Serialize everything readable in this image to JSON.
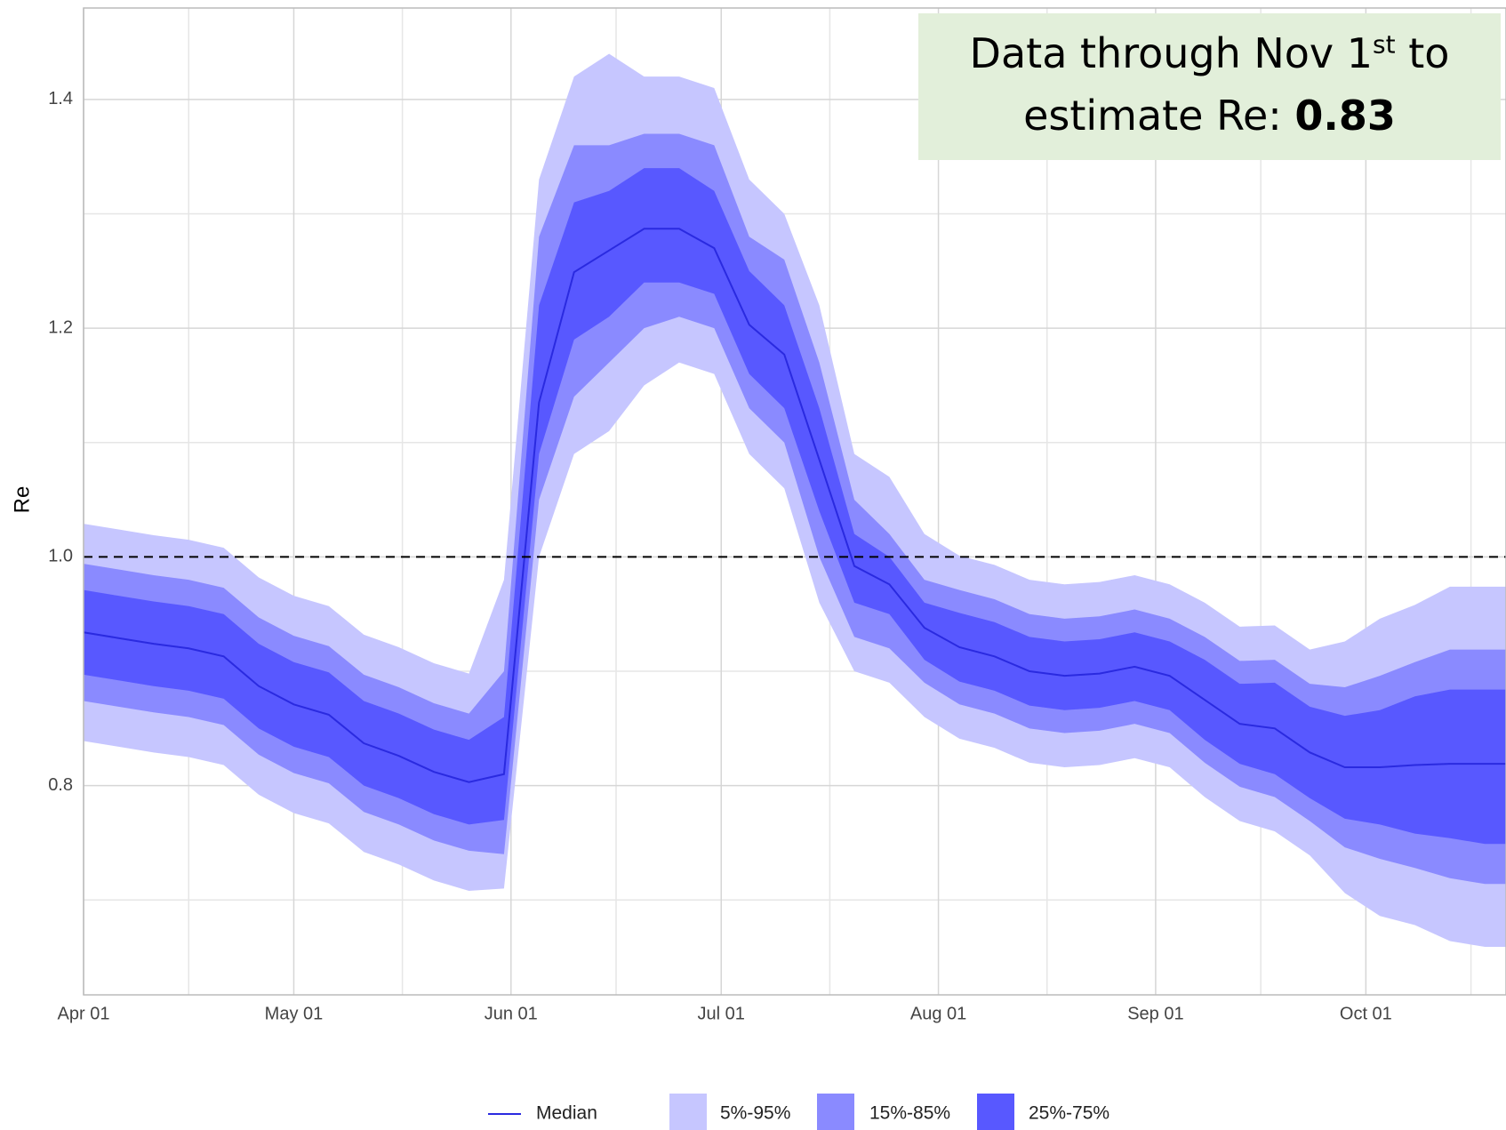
{
  "chart_data": {
    "type": "line",
    "ylabel": "Re",
    "x": [
      "04-01",
      "04-06",
      "04-11",
      "04-16",
      "04-21",
      "04-26",
      "05-01",
      "05-06",
      "05-11",
      "05-16",
      "05-21",
      "05-26",
      "05-31",
      "06-05",
      "06-10",
      "06-15",
      "06-20",
      "06-25",
      "06-30",
      "07-05",
      "07-10",
      "07-15",
      "07-20",
      "07-25",
      "07-30",
      "08-04",
      "08-09",
      "08-14",
      "08-19",
      "08-24",
      "08-29",
      "09-03",
      "09-08",
      "09-13",
      "09-18",
      "09-23",
      "09-28",
      "10-03",
      "10-08",
      "10-13",
      "10-18",
      "10-21"
    ],
    "series": [
      {
        "name": "Median",
        "color": "#2a2ae0",
        "values": [
          0.934,
          0.929,
          0.924,
          0.92,
          0.913,
          0.887,
          0.871,
          0.862,
          0.837,
          0.826,
          0.812,
          0.803,
          0.81,
          1.135,
          1.249,
          1.268,
          1.287,
          1.287,
          1.27,
          1.203,
          1.177,
          1.085,
          0.992,
          0.976,
          0.938,
          0.921,
          0.913,
          0.9,
          0.896,
          0.898,
          0.904,
          0.896,
          0.875,
          0.854,
          0.85,
          0.829,
          0.816,
          0.816,
          0.818,
          0.819,
          0.819,
          0.819
        ]
      }
    ],
    "bands": [
      {
        "name": "5%-95%",
        "color": "#c6c6ff",
        "lower": [
          0.839,
          0.834,
          0.829,
          0.825,
          0.818,
          0.792,
          0.776,
          0.767,
          0.742,
          0.731,
          0.717,
          0.708,
          0.71,
          1.0,
          1.09,
          1.11,
          1.15,
          1.17,
          1.16,
          1.09,
          1.06,
          0.96,
          0.9,
          0.89,
          0.86,
          0.841,
          0.833,
          0.82,
          0.816,
          0.818,
          0.824,
          0.816,
          0.79,
          0.769,
          0.76,
          0.739,
          0.706,
          0.686,
          0.678,
          0.664,
          0.659,
          0.659
        ],
        "upper": [
          1.029,
          1.024,
          1.019,
          1.015,
          1.008,
          0.982,
          0.966,
          0.957,
          0.932,
          0.921,
          0.907,
          0.898,
          0.98,
          1.33,
          1.42,
          1.44,
          1.42,
          1.42,
          1.41,
          1.33,
          1.3,
          1.22,
          1.09,
          1.07,
          1.02,
          1.001,
          0.993,
          0.98,
          0.976,
          0.978,
          0.984,
          0.976,
          0.96,
          0.939,
          0.94,
          0.919,
          0.926,
          0.946,
          0.958,
          0.974,
          0.974,
          0.974
        ]
      },
      {
        "name": "15%-85%",
        "color": "#8a8aff",
        "lower": [
          0.874,
          0.869,
          0.864,
          0.86,
          0.853,
          0.827,
          0.811,
          0.802,
          0.777,
          0.766,
          0.752,
          0.743,
          0.74,
          1.05,
          1.14,
          1.17,
          1.2,
          1.21,
          1.2,
          1.13,
          1.1,
          1.0,
          0.93,
          0.92,
          0.89,
          0.871,
          0.863,
          0.85,
          0.846,
          0.848,
          0.854,
          0.846,
          0.82,
          0.799,
          0.79,
          0.769,
          0.746,
          0.736,
          0.728,
          0.719,
          0.714,
          0.714
        ],
        "upper": [
          0.994,
          0.989,
          0.984,
          0.98,
          0.973,
          0.947,
          0.931,
          0.922,
          0.897,
          0.886,
          0.872,
          0.863,
          0.9,
          1.28,
          1.36,
          1.36,
          1.37,
          1.37,
          1.36,
          1.28,
          1.26,
          1.17,
          1.05,
          1.02,
          0.98,
          0.971,
          0.963,
          0.95,
          0.946,
          0.948,
          0.954,
          0.946,
          0.93,
          0.909,
          0.91,
          0.889,
          0.886,
          0.896,
          0.908,
          0.919,
          0.919,
          0.919
        ]
      },
      {
        "name": "25%-75%",
        "color": "#5858ff",
        "lower": [
          0.897,
          0.892,
          0.887,
          0.883,
          0.876,
          0.85,
          0.834,
          0.825,
          0.8,
          0.789,
          0.775,
          0.766,
          0.77,
          1.09,
          1.19,
          1.21,
          1.24,
          1.24,
          1.23,
          1.16,
          1.13,
          1.04,
          0.96,
          0.95,
          0.91,
          0.891,
          0.883,
          0.87,
          0.866,
          0.868,
          0.874,
          0.866,
          0.84,
          0.819,
          0.81,
          0.789,
          0.771,
          0.766,
          0.758,
          0.754,
          0.749,
          0.749
        ],
        "upper": [
          0.971,
          0.966,
          0.961,
          0.957,
          0.95,
          0.924,
          0.908,
          0.899,
          0.874,
          0.863,
          0.849,
          0.84,
          0.86,
          1.22,
          1.31,
          1.32,
          1.34,
          1.34,
          1.32,
          1.25,
          1.22,
          1.13,
          1.02,
          1.0,
          0.96,
          0.951,
          0.943,
          0.93,
          0.926,
          0.928,
          0.934,
          0.926,
          0.91,
          0.889,
          0.89,
          0.869,
          0.861,
          0.866,
          0.878,
          0.884,
          0.884,
          0.884
        ]
      }
    ],
    "xlim": [
      "04-01",
      "10-21"
    ],
    "xticks": [
      {
        "value": "04-01",
        "label": "Apr 01"
      },
      {
        "value": "05-01",
        "label": "May 01"
      },
      {
        "value": "06-01",
        "label": "Jun 01"
      },
      {
        "value": "07-01",
        "label": "Jul 01"
      },
      {
        "value": "08-01",
        "label": "Aug 01"
      },
      {
        "value": "09-01",
        "label": "Sep 01"
      },
      {
        "value": "10-01",
        "label": "Oct 01"
      }
    ],
    "ylim": [
      0.617,
      1.48
    ],
    "yticks": [
      0.8,
      {
        "value": 1,
        "label": "1.0"
      },
      1.2,
      1.4
    ],
    "hline": 1,
    "grid": true,
    "legend": "bottom",
    "annotation": {
      "line1": "Data through Nov 1",
      "sup": "st",
      "line1_end": " to",
      "line2": "estimate Re: ",
      "value": 0.83,
      "background": "#e2efda"
    }
  }
}
